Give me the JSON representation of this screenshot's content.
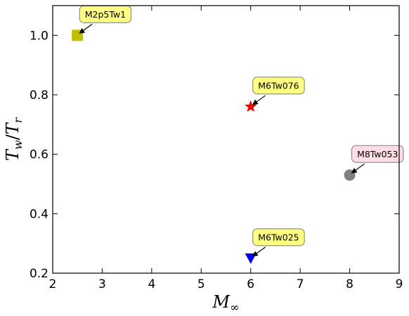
{
  "chart_data": {
    "type": "scatter",
    "xlabel": "M∞",
    "ylabel": "T_w/T_r",
    "xlim": [
      2,
      9
    ],
    "ylim": [
      0.2,
      1.1
    ],
    "xticks": [
      2,
      3,
      4,
      5,
      6,
      7,
      8,
      9
    ],
    "yticks": [
      0.2,
      0.4,
      0.6,
      0.8,
      1.0
    ],
    "xtick_labels": [
      "2",
      "3",
      "4",
      "5",
      "6",
      "7",
      "8",
      "9"
    ],
    "ytick_labels": [
      "0.2",
      "0.4",
      "0.6",
      "0.8",
      "1.0"
    ],
    "grid": false,
    "points": [
      {
        "label": "M2p5Tw1",
        "x": 2.5,
        "y": 1.0,
        "marker": "square",
        "color": "#bfbf00",
        "box_color": "#ffff80"
      },
      {
        "label": "M6Tw076",
        "x": 6.0,
        "y": 0.76,
        "marker": "star",
        "color": "#ff0000",
        "box_color": "#ffff80"
      },
      {
        "label": "M8Tw053",
        "x": 8.0,
        "y": 0.53,
        "marker": "circle",
        "color": "#808080",
        "box_color": "#ffdde4"
      },
      {
        "label": "M6Tw025",
        "x": 6.0,
        "y": 0.25,
        "marker": "triangle-down",
        "color": "#0000ff",
        "box_color": "#ffff80"
      }
    ]
  }
}
